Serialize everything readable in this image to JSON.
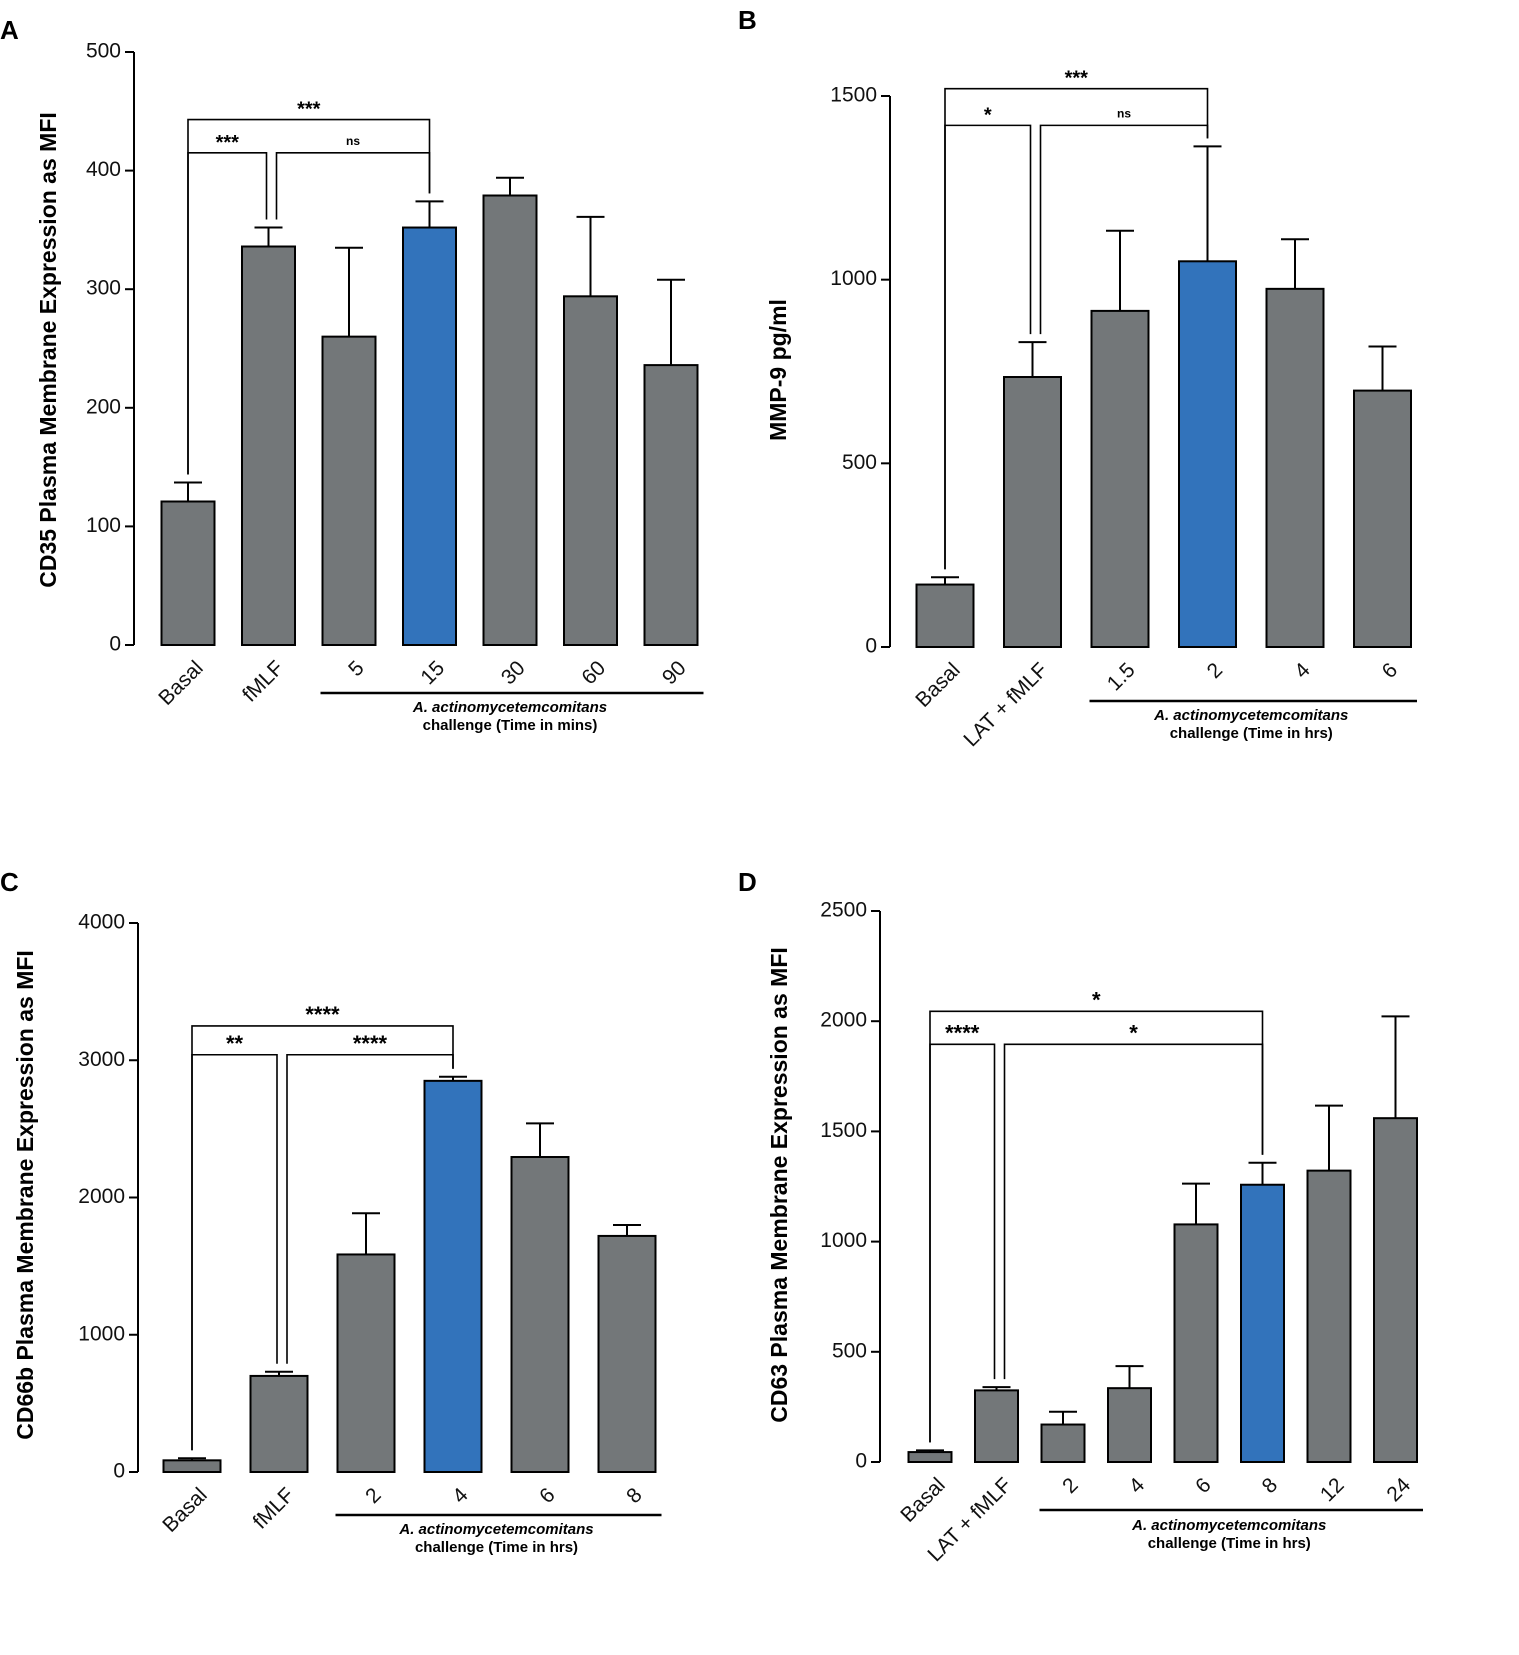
{
  "chart_data": [
    {
      "panel": "A",
      "type": "bar",
      "ylabel": "CD35 Plasma Membrane Expression as MFI",
      "ylim": [
        0,
        500
      ],
      "yticks": [
        0,
        100,
        200,
        300,
        400,
        500
      ],
      "categories": [
        "Basal",
        "fMLF",
        "5",
        "15",
        "30",
        "60",
        "90"
      ],
      "values": [
        121,
        336,
        260,
        352,
        379,
        294,
        236
      ],
      "errors": [
        16,
        16,
        75,
        22,
        15,
        67,
        72
      ],
      "highlight_index": 3,
      "colors": {
        "bar": "#737779",
        "highlight": "#3273bb"
      },
      "group_label_italic": "A. actinomycetemcomitans",
      "group_label": "challenge (Time in mins)",
      "group_range": [
        2,
        6
      ],
      "comparisons": [
        {
          "from": 0,
          "to": 1,
          "label": "***",
          "y": 415
        },
        {
          "from": 1,
          "to": 3,
          "label": "ns",
          "y": 415
        },
        {
          "from": 0,
          "to": 3,
          "label": "***",
          "y": 443
        }
      ]
    },
    {
      "panel": "B",
      "type": "bar",
      "ylabel": "MMP-9 pg/ml",
      "ylim": [
        0,
        1500
      ],
      "yticks": [
        0,
        500,
        1000,
        1500
      ],
      "categories": [
        "Basal",
        "LAT + fMLF",
        "1.5",
        "2",
        "4",
        "6"
      ],
      "values": [
        170,
        735,
        915,
        1050,
        975,
        698
      ],
      "errors": [
        20,
        95,
        218,
        313,
        135,
        120
      ],
      "highlight_index": 3,
      "colors": {
        "bar": "#737779",
        "highlight": "#3273bb"
      },
      "group_label_italic": "A. actinomycetemcomitans",
      "group_label": "challenge (Time in hrs)",
      "group_range": [
        2,
        5
      ],
      "comparisons": [
        {
          "from": 0,
          "to": 1,
          "label": "*",
          "y": 1420
        },
        {
          "from": 1,
          "to": 3,
          "label": "ns",
          "y": 1420
        },
        {
          "from": 0,
          "to": 3,
          "label": "***",
          "y": 1520
        }
      ]
    },
    {
      "panel": "C",
      "type": "bar",
      "ylabel": "CD66b Plasma Membrane Expression as MFI",
      "ylim": [
        0,
        4000
      ],
      "yticks": [
        0,
        1000,
        2000,
        3000,
        4000
      ],
      "categories": [
        "Basal",
        "fMLF",
        "2",
        "4",
        "6",
        "8"
      ],
      "values": [
        85,
        700,
        1585,
        2850,
        2295,
        1720
      ],
      "errors": [
        15,
        30,
        300,
        30,
        245,
        80
      ],
      "highlight_index": 3,
      "colors": {
        "bar": "#737779",
        "highlight": "#3273bb"
      },
      "group_label_italic": "A. actinomycetemcomitans",
      "group_label": "challenge (Time in hrs)",
      "group_range": [
        2,
        5
      ],
      "comparisons": [
        {
          "from": 0,
          "to": 1,
          "label": "**",
          "y": 3040
        },
        {
          "from": 1,
          "to": 3,
          "label": "****",
          "y": 3040
        },
        {
          "from": 0,
          "to": 3,
          "label": "****",
          "y": 3250
        }
      ]
    },
    {
      "panel": "D",
      "type": "bar",
      "ylabel": "CD63 Plasma Membrane Expression as MFI",
      "ylim": [
        0,
        2500
      ],
      "yticks": [
        0,
        500,
        1000,
        1500,
        2000,
        2500
      ],
      "categories": [
        "Basal",
        "LAT + fMLF",
        "2",
        "4",
        "6",
        "8",
        "12",
        "24"
      ],
      "values": [
        45,
        325,
        170,
        335,
        1078,
        1258,
        1322,
        1560
      ],
      "errors": [
        8,
        15,
        58,
        100,
        185,
        100,
        295,
        462
      ],
      "highlight_index": 5,
      "colors": {
        "bar": "#737779",
        "highlight": "#3273bb"
      },
      "group_label_italic": "A. actinomycetemcomitans",
      "group_label": "challenge (Time in hrs)",
      "group_range": [
        2,
        7
      ],
      "comparisons": [
        {
          "from": 0,
          "to": 1,
          "label": "****",
          "y": 1895
        },
        {
          "from": 1,
          "to": 5,
          "label": "*",
          "y": 1895
        },
        {
          "from": 0,
          "to": 5,
          "label": "*",
          "y": 2045
        }
      ]
    }
  ]
}
